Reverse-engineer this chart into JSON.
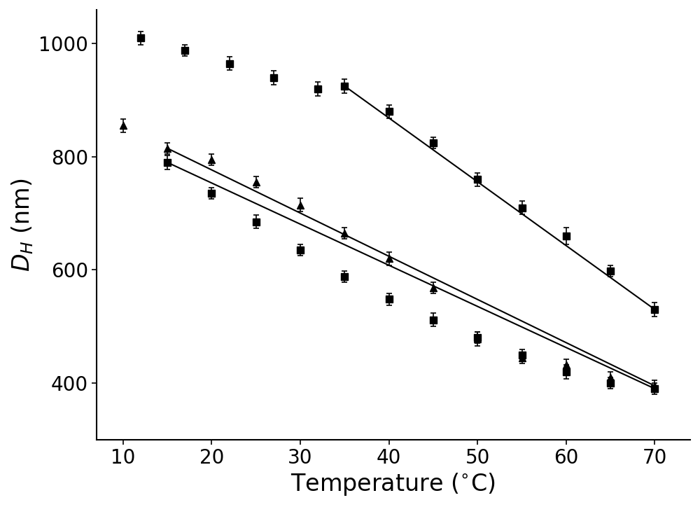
{
  "series": [
    {
      "name": "top_scatter",
      "x": [
        12,
        17,
        22,
        27,
        32
      ],
      "y": [
        1010,
        988,
        965,
        940,
        920
      ],
      "yerr": [
        12,
        10,
        12,
        12,
        12
      ],
      "has_line": false,
      "marker": "s",
      "markersize": 7,
      "color": "black"
    },
    {
      "name": "upper_line",
      "x": [
        35,
        40,
        45,
        50,
        55,
        60,
        65,
        70
      ],
      "y": [
        925,
        880,
        825,
        760,
        710,
        660,
        598,
        530
      ],
      "yerr": [
        12,
        12,
        10,
        12,
        12,
        15,
        10,
        12
      ],
      "has_line": true,
      "fit_x": [
        35,
        70
      ],
      "fit_y": [
        925,
        530
      ],
      "marker": "s",
      "markersize": 7,
      "color": "black"
    },
    {
      "name": "middle_line_tri",
      "x": [
        10,
        15,
        20,
        25,
        30,
        35,
        40,
        45,
        50,
        55,
        60,
        65,
        70
      ],
      "y": [
        855,
        815,
        795,
        755,
        715,
        665,
        620,
        568,
        478,
        445,
        432,
        410,
        395
      ],
      "yerr": [
        12,
        10,
        10,
        10,
        12,
        10,
        12,
        10,
        12,
        10,
        10,
        10,
        10
      ],
      "has_line": true,
      "fit_x": [
        15,
        70
      ],
      "fit_y": [
        815,
        395
      ],
      "marker": "^",
      "markersize": 7,
      "color": "black"
    },
    {
      "name": "lower_line_sq",
      "x": [
        15,
        20,
        25,
        30,
        35,
        40,
        45,
        50,
        55,
        60,
        65,
        70
      ],
      "y": [
        790,
        735,
        685,
        635,
        588,
        548,
        512,
        480,
        450,
        420,
        400,
        390
      ],
      "yerr": [
        12,
        10,
        12,
        10,
        10,
        10,
        12,
        10,
        10,
        12,
        10,
        10
      ],
      "has_line": true,
      "fit_x": [
        15,
        70
      ],
      "fit_y": [
        790,
        390
      ],
      "marker": "s",
      "markersize": 7,
      "color": "black"
    }
  ],
  "xlabel": "Temperature ($^{\\circ}$C)",
  "ylabel": "$D_{H}$ (nm)",
  "xlim": [
    7,
    74
  ],
  "ylim": [
    300,
    1060
  ],
  "xticks": [
    10,
    20,
    30,
    40,
    50,
    60,
    70
  ],
  "yticks": [
    400,
    600,
    800,
    1000
  ],
  "background_color": "#ffffff",
  "label_fontsize": 24,
  "tick_fontsize": 20,
  "figsize": [
    10.0,
    7.24
  ],
  "dpi": 100
}
